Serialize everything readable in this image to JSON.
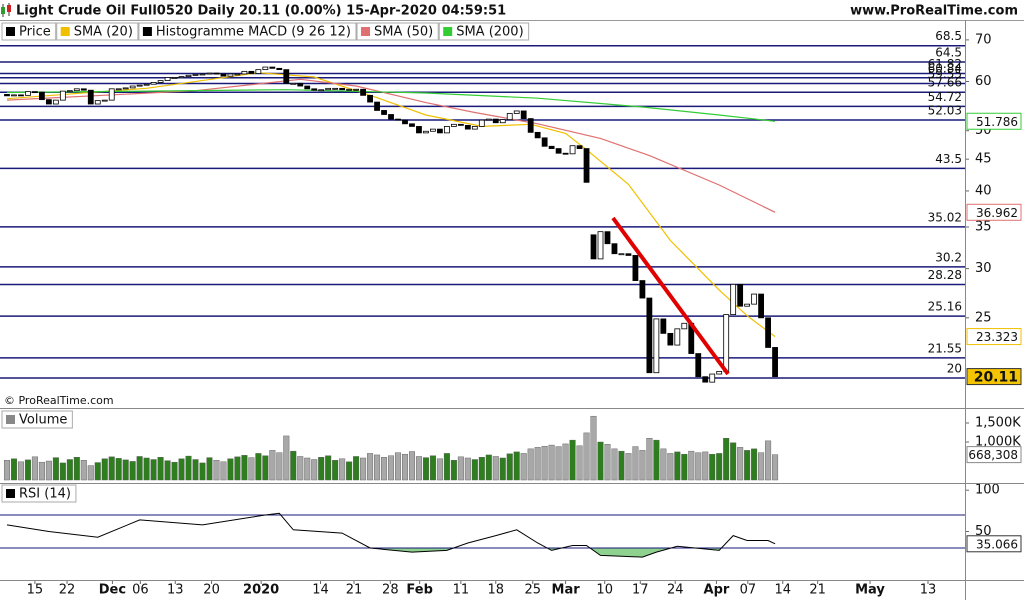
{
  "header": {
    "title": "Light Crude Oil Full0520 Daily 20.11 (0.00%) 15-Apr-2020 04:59:51",
    "site": "www.ProRealTime.com"
  },
  "copyright": "© ProRealTime.com",
  "chart_data": [
    {
      "type": "candlestick",
      "legend": [
        {
          "name": "Price",
          "color": "#000000"
        },
        {
          "name": "SMA (20)",
          "color": "#f0c000"
        },
        {
          "name": "Histogramme MACD (9 26 12)",
          "color": "#000000"
        },
        {
          "name": "SMA (50)",
          "color": "#e07070"
        },
        {
          "name": "SMA (200)",
          "color": "#33cc33"
        }
      ],
      "log_scale": true,
      "ylim": [
        17.9,
        74.8
      ],
      "yticks": [
        70,
        60,
        50,
        45,
        40,
        35,
        30,
        25
      ],
      "xlim": [
        -1.0,
        137.2
      ],
      "xticks": [
        {
          "value": 4,
          "label": "15"
        },
        {
          "value": 8.6,
          "label": "22"
        },
        {
          "value": 15.1,
          "label": "Dec"
        },
        {
          "value": 19.1,
          "label": "06"
        },
        {
          "value": 24.1,
          "label": "13"
        },
        {
          "value": 29.3,
          "label": "20"
        },
        {
          "value": 36.4,
          "label": "2020"
        },
        {
          "value": 44.9,
          "label": "14"
        },
        {
          "value": 49.7,
          "label": "21"
        },
        {
          "value": 54.9,
          "label": "28"
        },
        {
          "value": 59.1,
          "label": "Feb"
        },
        {
          "value": 65,
          "label": "11"
        },
        {
          "value": 70,
          "label": "18"
        },
        {
          "value": 75.3,
          "label": "25"
        },
        {
          "value": 80,
          "label": "Mar"
        },
        {
          "value": 85.6,
          "label": "10"
        },
        {
          "value": 90.7,
          "label": "17"
        },
        {
          "value": 95.7,
          "label": "24"
        },
        {
          "value": 101.6,
          "label": "Apr"
        },
        {
          "value": 106.1,
          "label": "07"
        },
        {
          "value": 111.1,
          "label": "14"
        },
        {
          "value": 116.1,
          "label": "21"
        },
        {
          "value": 123.6,
          "label": "May"
        },
        {
          "value": 131.9,
          "label": "13"
        }
      ],
      "levels": [
        68.5,
        64.5,
        61.82,
        60.84,
        59.55,
        57.66,
        54.72,
        52.03,
        43.5,
        35.02,
        30.2,
        28.28,
        25.16,
        21.55,
        20
      ],
      "level_color": "#1a1a7a",
      "up_color": "#ffffff",
      "down_color": "#000000",
      "open": [
        57.2,
        56.9,
        57.1,
        57.0,
        57.8,
        57.7,
        56.1,
        55.2,
        56.0,
        57.9,
        58.0,
        58.4,
        58.1,
        55.2,
        55.9,
        56.0,
        58.4,
        58.4,
        58.6,
        59.0,
        59.2,
        59.4,
        59.8,
        60.2,
        60.9,
        60.9,
        61.1,
        61.4,
        61.6,
        61.7,
        61.9,
        61.7,
        61.2,
        61.7,
        61.7,
        62.3,
        61.8,
        62.7,
        63.3,
        63.0,
        62.7,
        59.6,
        59.6,
        59.0,
        58.4,
        58.1,
        58.2,
        58.5,
        58.5,
        58.2,
        58.3,
        58.3,
        57.0,
        55.6,
        53.9,
        53.1,
        52.2,
        52.0,
        51.3,
        50.8,
        49.6,
        49.9,
        50.3,
        49.6,
        50.8,
        51.2,
        51.0,
        50.3,
        50.8,
        52.0,
        52.2,
        51.5,
        52.1,
        53.3,
        53.8,
        52.3,
        49.7,
        48.7,
        47.2,
        46.8,
        46.0,
        45.9,
        47.3,
        46.8,
        34.0,
        31.1,
        34.4,
        32.9,
        31.7,
        31.7,
        31.5,
        28.7,
        26.9,
        20.4,
        24.9,
        23.6,
        22.6,
        24.0,
        24.5,
        21.9,
        20.1,
        19.7,
        20.3,
        20.5,
        25.3,
        28.3,
        26.1,
        26.3,
        27.3,
        25.0,
        22.4
      ],
      "close": [
        56.9,
        57.1,
        57.0,
        57.8,
        57.7,
        56.1,
        55.2,
        56.0,
        57.9,
        58.0,
        58.4,
        58.1,
        55.2,
        55.9,
        56.0,
        58.4,
        58.4,
        58.6,
        59.0,
        59.2,
        59.4,
        59.8,
        60.2,
        60.9,
        60.9,
        61.1,
        61.4,
        61.6,
        61.7,
        61.9,
        61.7,
        61.2,
        61.7,
        61.7,
        62.3,
        61.8,
        62.7,
        63.3,
        63.0,
        62.7,
        59.6,
        59.6,
        59.0,
        58.4,
        58.1,
        58.2,
        58.5,
        58.5,
        58.2,
        58.3,
        58.3,
        57.0,
        55.6,
        53.9,
        53.1,
        52.2,
        52.0,
        51.3,
        50.8,
        49.6,
        49.9,
        50.3,
        49.6,
        50.8,
        51.2,
        51.0,
        50.3,
        50.8,
        52.0,
        52.2,
        51.5,
        52.1,
        53.3,
        53.8,
        52.3,
        49.7,
        48.7,
        47.2,
        46.8,
        46.0,
        45.9,
        47.3,
        46.8,
        41.3,
        31.1,
        34.4,
        32.9,
        31.7,
        31.7,
        31.5,
        28.7,
        26.9,
        20.4,
        24.9,
        23.6,
        22.6,
        24.0,
        24.5,
        21.9,
        20.1,
        19.7,
        20.3,
        20.5,
        25.3,
        28.3,
        26.1,
        26.3,
        27.3,
        25.0,
        22.4,
        20.11
      ],
      "price_badge_color": "#f5c400",
      "series": [
        {
          "color": "#f0c000",
          "x": [
            0,
            20,
            36,
            44,
            53,
            60,
            68,
            75,
            80,
            83,
            89,
            95,
            102,
            106,
            110
          ],
          "values": [
            56.3,
            58.5,
            62.0,
            61.0,
            56.5,
            53.0,
            50.8,
            51.2,
            49.5,
            46.6,
            41.0,
            33.3,
            27.7,
            25.2,
            23.323
          ]
        },
        {
          "color": "#e07070",
          "x": [
            0,
            27,
            42,
            50,
            60,
            67,
            76,
            85,
            92,
            102,
            110
          ],
          "values": [
            56.0,
            58.0,
            60.5,
            59.0,
            55.5,
            53.5,
            51.3,
            48.6,
            45.6,
            40.9,
            36.962
          ]
        },
        {
          "color": "#33cc33",
          "x": [
            0,
            20,
            40,
            60,
            76,
            91,
            102,
            110
          ],
          "values": [
            57.6,
            57.9,
            58.2,
            57.5,
            56.4,
            54.6,
            53.0,
            51.786
          ]
        }
      ]
    },
    {
      "type": "bar",
      "title": "Volume",
      "ylim": [
        -52000,
        1842000
      ],
      "yticks": [
        {
          "value": 1500000,
          "label": "1,500K"
        },
        {
          "value": 1000000,
          "label": "1,000K"
        }
      ],
      "up_color": "#2e7d1e",
      "down_color": "#a8a8a8",
      "values": [
        520000,
        560000,
        480000,
        530000,
        610000,
        470000,
        500000,
        590000,
        450000,
        540000,
        600000,
        520000,
        380000,
        460000,
        560000,
        610000,
        570000,
        530000,
        490000,
        620000,
        580000,
        540000,
        600000,
        510000,
        470000,
        560000,
        630000,
        540000,
        450000,
        590000,
        520000,
        480000,
        560000,
        610000,
        650000,
        590000,
        700000,
        640000,
        780000,
        720000,
        1160000,
        760000,
        620000,
        580000,
        540000,
        600000,
        640000,
        520000,
        560000,
        480000,
        620000,
        580000,
        700000,
        660000,
        600000,
        640000,
        720000,
        680000,
        750000,
        620000,
        590000,
        640000,
        560000,
        700000,
        520000,
        610000,
        580000,
        540000,
        600000,
        660000,
        620000,
        580000,
        690000,
        740000,
        700000,
        820000,
        860000,
        890000,
        920000,
        880000,
        950000,
        1050000,
        900000,
        1240000,
        1680000,
        1000000,
        940000,
        820000,
        760000,
        700000,
        880000,
        780000,
        1100000,
        1050000,
        820000,
        700000,
        740000,
        680000,
        760000,
        720000,
        740000,
        680000,
        700000,
        1100000,
        980000,
        860000,
        780000,
        820000,
        720000,
        1030000,
        668308
      ],
      "value_labels": [
        null,
        null,
        null,
        null,
        null,
        null,
        null,
        null,
        null,
        null,
        null,
        null,
        null,
        null,
        null,
        null,
        null,
        null,
        null,
        null,
        null,
        null,
        null,
        null,
        null,
        null,
        null,
        null,
        null,
        null,
        null,
        null,
        null,
        null,
        null,
        null,
        null,
        null,
        null,
        null,
        null,
        null,
        null,
        null,
        null,
        null,
        null,
        null,
        null,
        null,
        null,
        null,
        null,
        null,
        null,
        null,
        null,
        null,
        null,
        null,
        null,
        null,
        null,
        null,
        null,
        null,
        null,
        null,
        null,
        null,
        null,
        null,
        null,
        null,
        null,
        null,
        null,
        null,
        null,
        null,
        null,
        null,
        null,
        null,
        null,
        null,
        null,
        null,
        null,
        null,
        null,
        null,
        null,
        null,
        null,
        null,
        null,
        null,
        null,
        null,
        null,
        null,
        null,
        null,
        null,
        null,
        null,
        null,
        null,
        null,
        "668,308"
      ]
    },
    {
      "type": "line",
      "title": "RSI (14)",
      "ylim": [
        -8.8,
        107.5
      ],
      "yticks": [
        100,
        50
      ],
      "levels": [
        70,
        30
      ],
      "color": "#000000",
      "fill_color": "#8fd18f",
      "level_color": "#1a1a7a",
      "x": [
        0,
        6,
        13,
        19,
        28,
        37,
        39,
        41,
        48,
        52,
        58,
        63,
        66,
        70,
        73,
        76,
        78,
        81,
        83,
        85,
        91,
        93,
        96,
        102,
        104,
        106,
        109,
        110
      ],
      "values": [
        58,
        50,
        43,
        64,
        58,
        70,
        72,
        52,
        48,
        30,
        25,
        27,
        36,
        45,
        52,
        36,
        27,
        33,
        33,
        21,
        19,
        25,
        32,
        27,
        45,
        39,
        39,
        35.066
      ]
    }
  ]
}
